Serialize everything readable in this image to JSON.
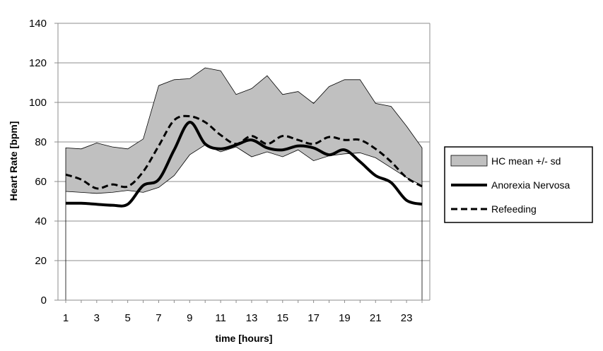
{
  "chart_data": {
    "type": "line",
    "xlabel": "time [hours]",
    "ylabel": "Heart Rate [bpm]",
    "ylim": [
      0,
      140
    ],
    "yticks": [
      0,
      20,
      40,
      60,
      80,
      100,
      120,
      140
    ],
    "xticks": [
      1,
      3,
      5,
      7,
      9,
      11,
      13,
      15,
      17,
      19,
      21,
      23
    ],
    "xrange": [
      1,
      24
    ],
    "grid": "horizontal",
    "legend_position": "right",
    "band": {
      "name": "HC mean +/- sd",
      "color": "#c0c0c0",
      "x": [
        1,
        2,
        3,
        4,
        5,
        6,
        7,
        8,
        9,
        10,
        11,
        12,
        13,
        14,
        15,
        16,
        17,
        18,
        19,
        20,
        21,
        22,
        23,
        24
      ],
      "upper": [
        77,
        76.5,
        79.5,
        77.5,
        76.5,
        81.5,
        108.5,
        111.5,
        112,
        117.5,
        116,
        104,
        107,
        113.5,
        104,
        105.5,
        99.5,
        108,
        111.5,
        111.5,
        99.5,
        98,
        88,
        77
      ],
      "lower": [
        55,
        54.5,
        54,
        54.5,
        55.5,
        54.5,
        57,
        63,
        73.5,
        78.5,
        75,
        77.5,
        72.5,
        75,
        72.5,
        76,
        70.5,
        73,
        74,
        74.5,
        72,
        67,
        62,
        58
      ]
    },
    "series": [
      {
        "name": "Anorexia Nervosa",
        "style": "solid",
        "color": "#000000",
        "x": [
          1,
          2,
          3,
          4,
          5,
          6,
          7,
          8,
          9,
          10,
          11,
          12,
          13,
          14,
          15,
          16,
          17,
          18,
          19,
          20,
          21,
          22,
          23,
          24
        ],
        "values": [
          49,
          49,
          48.5,
          48,
          48.5,
          58,
          61,
          76,
          90,
          79,
          76.5,
          78.5,
          81,
          77,
          76,
          78,
          77,
          73.5,
          76,
          70,
          63,
          59.5,
          50.5,
          48.5
        ]
      },
      {
        "name": "Refeeding",
        "style": "dashed",
        "color": "#000000",
        "x": [
          1,
          2,
          3,
          4,
          5,
          6,
          7,
          8,
          9,
          10,
          11,
          12,
          13,
          14,
          15,
          16,
          17,
          18,
          19,
          20,
          21,
          22,
          23,
          24
        ],
        "values": [
          63.5,
          61,
          56.5,
          58.5,
          57.5,
          65,
          78,
          91,
          93,
          90,
          83.5,
          79,
          83,
          79,
          83,
          81,
          79,
          82.5,
          81,
          81,
          76.5,
          70,
          62,
          57.5
        ]
      }
    ]
  }
}
